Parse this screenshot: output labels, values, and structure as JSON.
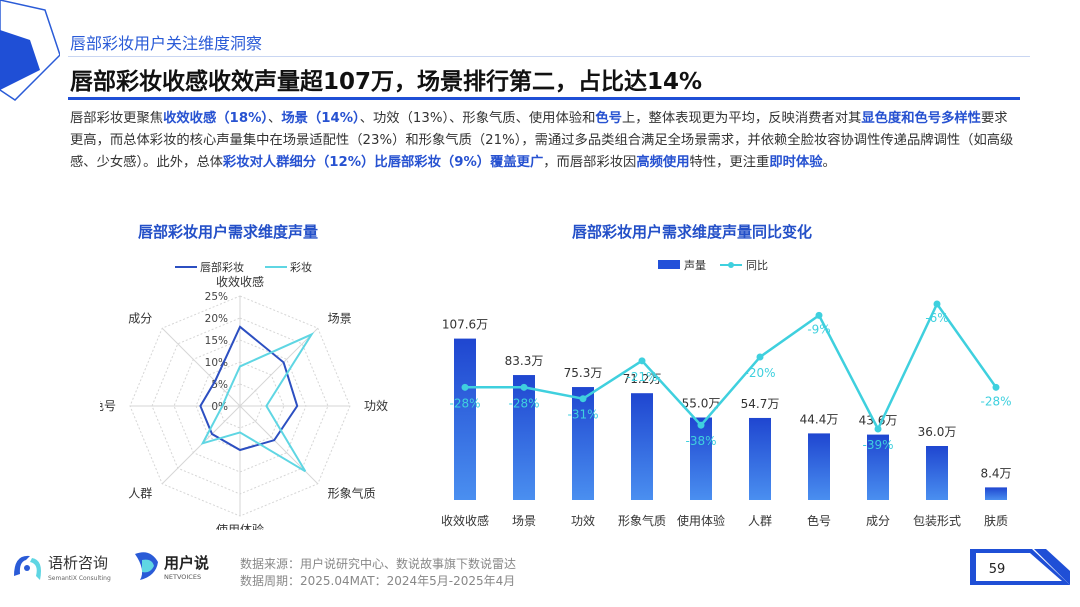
{
  "header": {
    "section": "唇部彩妆用户关注维度洞察",
    "headline": "唇部彩妆收感收效声量超107万，场景排行第二，占比达14%"
  },
  "body": {
    "segments": [
      {
        "t": "唇部彩妆更聚焦",
        "hl": false
      },
      {
        "t": "收效收感（18%）",
        "hl": true
      },
      {
        "t": "、",
        "hl": false
      },
      {
        "t": "场景（14%）",
        "hl": true
      },
      {
        "t": "、功效（13%）、形象气质、使用体验和",
        "hl": false
      },
      {
        "t": "色号",
        "hl": true
      },
      {
        "t": "上，整体表现更为平均，反映消费者对其",
        "hl": false
      },
      {
        "t": "显色度和色号多样性",
        "hl": true
      },
      {
        "t": "要求更高，而总体彩妆的核心声量集中在场景适配性（23%）和形象气质（21%），需通过多品类组合满足全场景需求，并依赖全脸妆容协调性传递品牌调性（如高级感、少女感）。此外，总体",
        "hl": false
      },
      {
        "t": "彩妆对人群细分（12%）比唇部彩妆（9%）覆盖更广",
        "hl": true
      },
      {
        "t": "，而唇部彩妆因",
        "hl": false
      },
      {
        "t": "高频使用",
        "hl": true
      },
      {
        "t": "特性，更注重",
        "hl": false
      },
      {
        "t": "即时体验",
        "hl": true
      },
      {
        "t": "。",
        "hl": false
      }
    ]
  },
  "chart_data": [
    {
      "type": "radar",
      "title": "唇部彩妆用户需求维度声量",
      "axes": [
        "收效收感",
        "场景",
        "功效",
        "形象气质",
        "使用体验",
        "人群",
        "色号",
        "成分"
      ],
      "ticks": [
        "0%",
        "5%",
        "10%",
        "15%",
        "20%",
        "25%"
      ],
      "rmax": 25,
      "legend_position": "top",
      "series": [
        {
          "name": "唇部彩妆",
          "color": "#2c4fc1",
          "values": [
            18,
            14,
            13,
            11,
            10,
            9,
            9,
            8
          ]
        },
        {
          "name": "彩妆",
          "color": "#5fd6e3",
          "values": [
            9,
            23,
            6,
            21,
            6,
            12,
            4,
            4
          ]
        }
      ]
    },
    {
      "type": "bar+line",
      "title": "唇部彩妆用户需求维度声量同比变化",
      "categories": [
        "收效收感",
        "场景",
        "功效",
        "形象气质",
        "使用体验",
        "人群",
        "色号",
        "成分",
        "包装形式",
        "肤质"
      ],
      "legend_position": "top",
      "series": [
        {
          "name": "声量",
          "type": "bar",
          "color": "#2250d9",
          "values": [
            107.6,
            83.3,
            75.3,
            71.2,
            55.0,
            54.7,
            44.4,
            43.6,
            36.0,
            8.4
          ],
          "labels": [
            "107.6万",
            "83.3万",
            "75.3万",
            "71.2万",
            "55.0万",
            "54.7万",
            "44.4万",
            "43.6万",
            "36.0万",
            "8.4万"
          ]
        },
        {
          "name": "同比",
          "type": "line",
          "color": "#3fd0de",
          "values": [
            -28,
            -28,
            -31,
            -21,
            -38,
            -20,
            -9,
            -39,
            -6,
            -28
          ],
          "labels": [
            "-28%",
            "-28%",
            "-31%",
            "-21%",
            "-38%",
            "-20%",
            "-9%",
            "-39%",
            "-6%",
            "-28%"
          ]
        }
      ]
    }
  ],
  "footer": {
    "logo1_name": "语析咨询",
    "logo1_sub": "SemantiX Consulting",
    "logo2_name": "用户说",
    "logo2_sub": "NETVOICES",
    "source": "数据来源：用户说研究中心、数说故事旗下数说雷达",
    "period": "数据周期：2025.04MAT：2024年5月-2025年4月",
    "page": "59"
  },
  "colors": {
    "accent": "#2250d9",
    "cyan": "#3fd0de"
  }
}
